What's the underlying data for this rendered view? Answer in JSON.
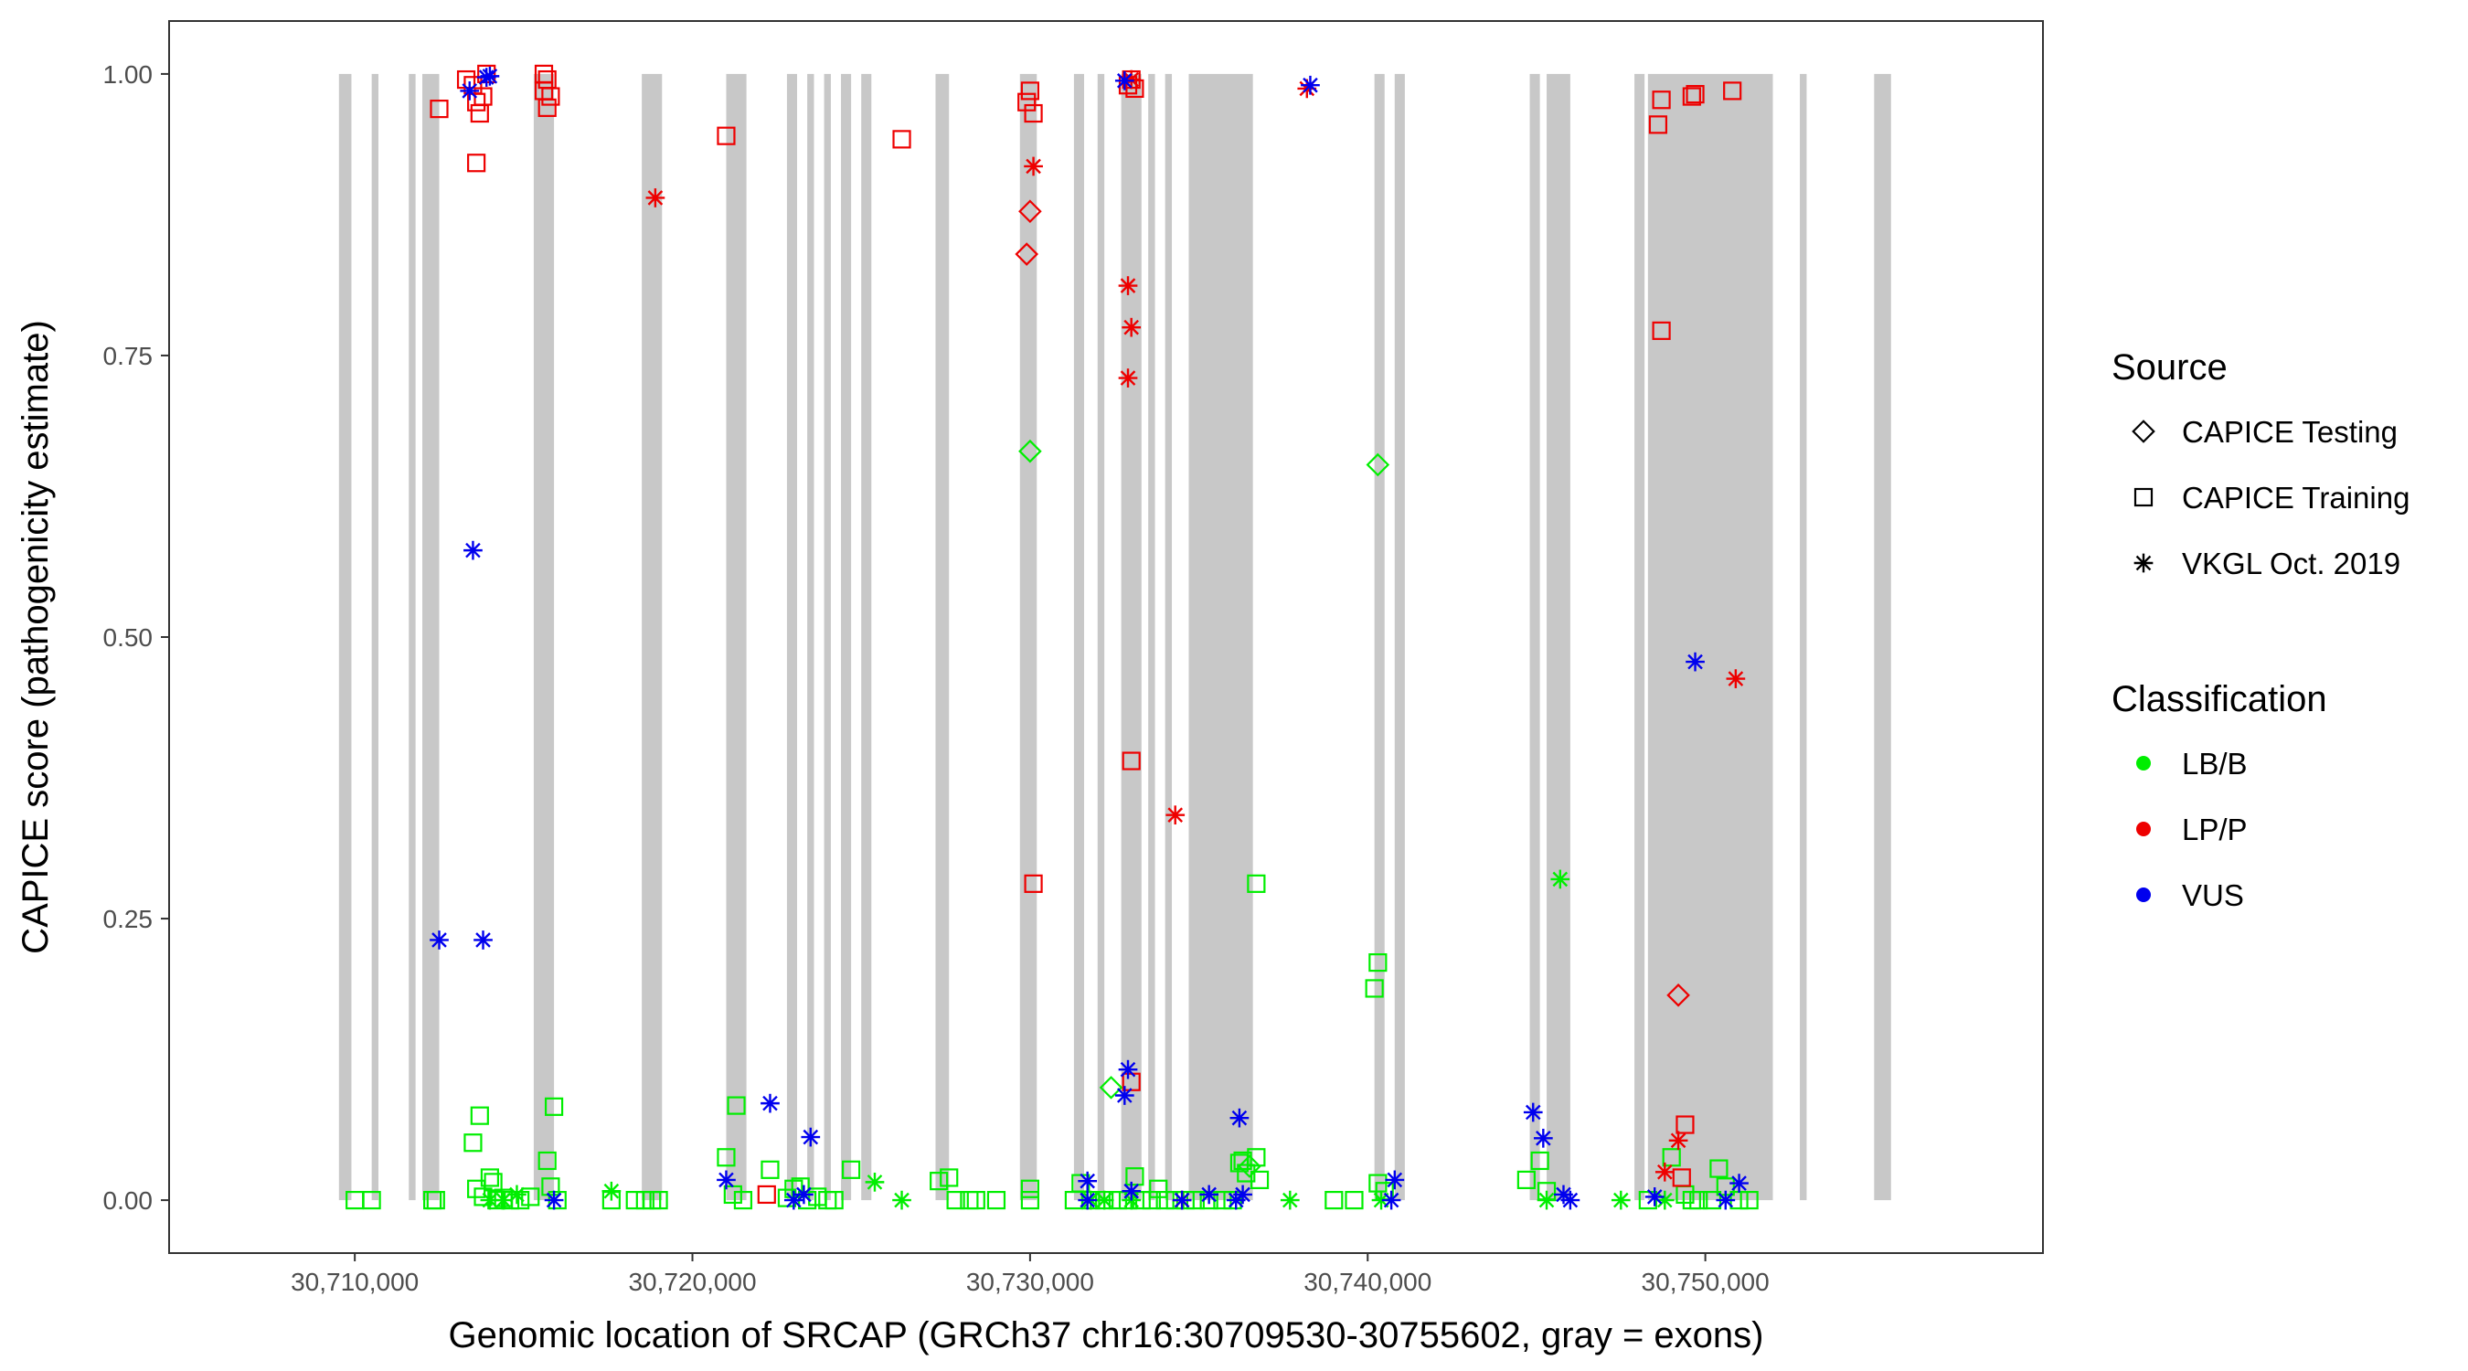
{
  "chart_data": {
    "type": "scatter",
    "title": "",
    "xlabel": "Genomic location of SRCAP (GRCh37 chr16:30709530-30755602, gray = exons)",
    "ylabel": "CAPICE score (pathogenicity estimate)",
    "xlim": [
      30704500,
      30760000
    ],
    "ylim": [
      -0.047,
      1.047
    ],
    "x_ticks": [
      30710000,
      30720000,
      30730000,
      30740000,
      30750000
    ],
    "x_tick_labels": [
      "30,710,000",
      "30,720,000",
      "30,730,000",
      "30,740,000",
      "30,750,000"
    ],
    "y_ticks": [
      0.0,
      0.25,
      0.5,
      0.75,
      1.0
    ],
    "y_tick_labels": [
      "0.00",
      "0.25",
      "0.50",
      "0.75",
      "1.00"
    ],
    "grid": false,
    "legend_placement": "right",
    "exons": [
      [
        30709530,
        30709900
      ],
      [
        30710500,
        30710700
      ],
      [
        30711600,
        30711800
      ],
      [
        30712000,
        30712500
      ],
      [
        30715300,
        30715900
      ],
      [
        30718500,
        30719100
      ],
      [
        30721000,
        30721600
      ],
      [
        30722800,
        30723100
      ],
      [
        30723400,
        30723600
      ],
      [
        30723900,
        30724100
      ],
      [
        30724400,
        30724700
      ],
      [
        30725000,
        30725300
      ],
      [
        30727200,
        30727600
      ],
      [
        30729700,
        30730200
      ],
      [
        30731300,
        30731600
      ],
      [
        30732000,
        30732200
      ],
      [
        30732700,
        30733300
      ],
      [
        30733500,
        30733700
      ],
      [
        30734000,
        30734200
      ],
      [
        30734700,
        30736600
      ],
      [
        30740200,
        30740500
      ],
      [
        30740800,
        30741100
      ],
      [
        30744800,
        30745100
      ],
      [
        30745300,
        30746000
      ],
      [
        30747900,
        30748200
      ],
      [
        30748300,
        30752000
      ],
      [
        30752800,
        30753000
      ],
      [
        30755000,
        30755500
      ]
    ],
    "legend_source": {
      "title": "Source",
      "items": [
        {
          "label": "CAPICE Testing",
          "shape": "diamond"
        },
        {
          "label": "CAPICE Training",
          "shape": "square"
        },
        {
          "label": "VKGL Oct. 2019",
          "shape": "asterisk"
        }
      ]
    },
    "legend_classification": {
      "title": "Classification",
      "items": [
        {
          "label": "LB/B",
          "color": "#00ee00"
        },
        {
          "label": "LP/P",
          "color": "#ee0000"
        },
        {
          "label": "VUS",
          "color": "#0000ee"
        }
      ]
    },
    "series": [
      {
        "source": "CAPICE Training",
        "classification": "LB/B",
        "points": [
          [
            30710000,
            0
          ],
          [
            30710500,
            0
          ],
          [
            30712300,
            0
          ],
          [
            30712400,
            0
          ],
          [
            30713500,
            0.051
          ],
          [
            30713700,
            0.075
          ],
          [
            30713600,
            0.01
          ],
          [
            30713800,
            0.003
          ],
          [
            30714000,
            0.02
          ],
          [
            30714100,
            0.016
          ],
          [
            30714200,
            0
          ],
          [
            30714400,
            0.002
          ],
          [
            30714600,
            0
          ],
          [
            30714900,
            0
          ],
          [
            30715200,
            0.003
          ],
          [
            30715700,
            0.035
          ],
          [
            30715800,
            0.012
          ],
          [
            30715900,
            0.083
          ],
          [
            30716000,
            0
          ],
          [
            30717600,
            0
          ],
          [
            30718300,
            0
          ],
          [
            30718600,
            0
          ],
          [
            30718800,
            0
          ],
          [
            30719000,
            0
          ],
          [
            30721000,
            0.038
          ],
          [
            30721200,
            0.005
          ],
          [
            30721300,
            0.084
          ],
          [
            30721500,
            0
          ],
          [
            30722300,
            0.027
          ],
          [
            30722800,
            0.002
          ],
          [
            30723000,
            0.01
          ],
          [
            30723200,
            0.012
          ],
          [
            30723400,
            0
          ],
          [
            30723700,
            0.003
          ],
          [
            30724000,
            0
          ],
          [
            30724200,
            0
          ],
          [
            30724700,
            0.027
          ],
          [
            30727300,
            0.017
          ],
          [
            30727600,
            0.02
          ],
          [
            30727800,
            0
          ],
          [
            30728200,
            0
          ],
          [
            30728400,
            0
          ],
          [
            30729000,
            0
          ],
          [
            30730000,
            0.01
          ],
          [
            30730000,
            0
          ],
          [
            30731300,
            0
          ],
          [
            30731500,
            0.015
          ],
          [
            30731800,
            0
          ],
          [
            30732200,
            0
          ],
          [
            30732600,
            0
          ],
          [
            30732900,
            0
          ],
          [
            30733100,
            0.021
          ],
          [
            30733300,
            0
          ],
          [
            30733600,
            0
          ],
          [
            30733800,
            0.01
          ],
          [
            30734000,
            0
          ],
          [
            30734300,
            0
          ],
          [
            30734600,
            0
          ],
          [
            30734900,
            0
          ],
          [
            30735300,
            0
          ],
          [
            30735700,
            0
          ],
          [
            30736000,
            0
          ],
          [
            30736200,
            0.033
          ],
          [
            30736300,
            0.035
          ],
          [
            30736400,
            0.024
          ],
          [
            30736700,
            0.038
          ],
          [
            30736800,
            0.018
          ],
          [
            30736700,
            0.281
          ],
          [
            30739000,
            0
          ],
          [
            30739600,
            0
          ],
          [
            30740300,
            0.211
          ],
          [
            30740200,
            0.188
          ],
          [
            30740300,
            0.015
          ],
          [
            30740500,
            0.008
          ],
          [
            30744700,
            0.018
          ],
          [
            30745100,
            0.035
          ],
          [
            30745300,
            0.008
          ],
          [
            30748300,
            0
          ],
          [
            30749000,
            0.038
          ],
          [
            30749400,
            0.005
          ],
          [
            30749600,
            0
          ],
          [
            30749800,
            0
          ],
          [
            30750200,
            0
          ],
          [
            30750400,
            0.028
          ],
          [
            30750600,
            0.012
          ],
          [
            30751000,
            0
          ],
          [
            30751300,
            0
          ]
        ]
      },
      {
        "source": "VKGL Oct. 2019",
        "classification": "LB/B",
        "points": [
          [
            30714000,
            0
          ],
          [
            30714400,
            0
          ],
          [
            30714800,
            0.005
          ],
          [
            30717600,
            0.008
          ],
          [
            30725400,
            0.016
          ],
          [
            30726200,
            0
          ],
          [
            30731800,
            0
          ],
          [
            30732200,
            0
          ],
          [
            30733000,
            0
          ],
          [
            30737700,
            0
          ],
          [
            30740400,
            0
          ],
          [
            30745700,
            0.285
          ],
          [
            30745300,
            0
          ],
          [
            30747500,
            0
          ],
          [
            30748800,
            0
          ]
        ]
      },
      {
        "source": "CAPICE Testing",
        "classification": "LB/B",
        "points": [
          [
            30730000,
            0.665
          ],
          [
            30740300,
            0.653
          ],
          [
            30732400,
            0.1
          ],
          [
            30736500,
            0.03
          ]
        ]
      },
      {
        "source": "CAPICE Training",
        "classification": "LP/P",
        "points": [
          [
            30712500,
            0.969
          ],
          [
            30713300,
            0.995
          ],
          [
            30713500,
            0.99
          ],
          [
            30713600,
            0.975
          ],
          [
            30713700,
            0.965
          ],
          [
            30713800,
            0.98
          ],
          [
            30713900,
            1.0
          ],
          [
            30713600,
            0.921
          ],
          [
            30715600,
            1.0
          ],
          [
            30715700,
            0.995
          ],
          [
            30715600,
            0.985
          ],
          [
            30715800,
            0.98
          ],
          [
            30715700,
            0.97
          ],
          [
            30721000,
            0.945
          ],
          [
            30726200,
            0.942
          ],
          [
            30729900,
            0.975
          ],
          [
            30730000,
            0.985
          ],
          [
            30730100,
            0.965
          ],
          [
            30730100,
            0.281
          ],
          [
            30732900,
            0.99
          ],
          [
            30733000,
            0.995
          ],
          [
            30733100,
            0.987
          ],
          [
            30733000,
            0.39
          ],
          [
            30748600,
            0.955
          ],
          [
            30748700,
            0.977
          ],
          [
            30749600,
            0.98
          ],
          [
            30749700,
            0.982
          ],
          [
            30750800,
            0.985
          ],
          [
            30748700,
            0.772
          ],
          [
            30749400,
            0.067
          ],
          [
            30749300,
            0.02
          ],
          [
            30722200,
            0.005
          ],
          [
            30733000,
            0.105
          ]
        ]
      },
      {
        "source": "VKGL Oct. 2019",
        "classification": "LP/P",
        "points": [
          [
            30718900,
            0.89
          ],
          [
            30730100,
            0.918
          ],
          [
            30732900,
            0.812
          ],
          [
            30733000,
            0.775
          ],
          [
            30732900,
            0.73
          ],
          [
            30734300,
            0.342
          ],
          [
            30738200,
            0.987
          ],
          [
            30750900,
            0.463
          ],
          [
            30749200,
            0.053
          ],
          [
            30748800,
            0.025
          ],
          [
            30734500,
            0
          ],
          [
            30733000,
            0.995
          ]
        ]
      },
      {
        "source": "CAPICE Testing",
        "classification": "LP/P",
        "points": [
          [
            30730000,
            0.878
          ],
          [
            30729900,
            0.84
          ],
          [
            30749200,
            0.182
          ]
        ]
      },
      {
        "source": "VKGL Oct. 2019",
        "classification": "VUS",
        "points": [
          [
            30713400,
            0.985
          ],
          [
            30713900,
            0.997
          ],
          [
            30714000,
            0.998
          ],
          [
            30713500,
            0.577
          ],
          [
            30712500,
            0.231
          ],
          [
            30713800,
            0.231
          ],
          [
            30715900,
            0
          ],
          [
            30721000,
            0.018
          ],
          [
            30722300,
            0.086
          ],
          [
            30723500,
            0.056
          ],
          [
            30723000,
            0
          ],
          [
            30723300,
            0.005
          ],
          [
            30731700,
            0.017
          ],
          [
            30731700,
            0
          ],
          [
            30732900,
            0.116
          ],
          [
            30732800,
            0.093
          ],
          [
            30733000,
            0.008
          ],
          [
            30732800,
            0.994
          ],
          [
            30734500,
            0
          ],
          [
            30735300,
            0.005
          ],
          [
            30736200,
            0.073
          ],
          [
            30736300,
            0.005
          ],
          [
            30736100,
            0
          ],
          [
            30738300,
            0.99
          ],
          [
            30740800,
            0.018
          ],
          [
            30740700,
            0
          ],
          [
            30744900,
            0.078
          ],
          [
            30745200,
            0.055
          ],
          [
            30745800,
            0.005
          ],
          [
            30746000,
            0
          ],
          [
            30748500,
            0.003
          ],
          [
            30749700,
            0.478
          ],
          [
            30751000,
            0.015
          ],
          [
            30750600,
            0
          ]
        ]
      }
    ]
  }
}
